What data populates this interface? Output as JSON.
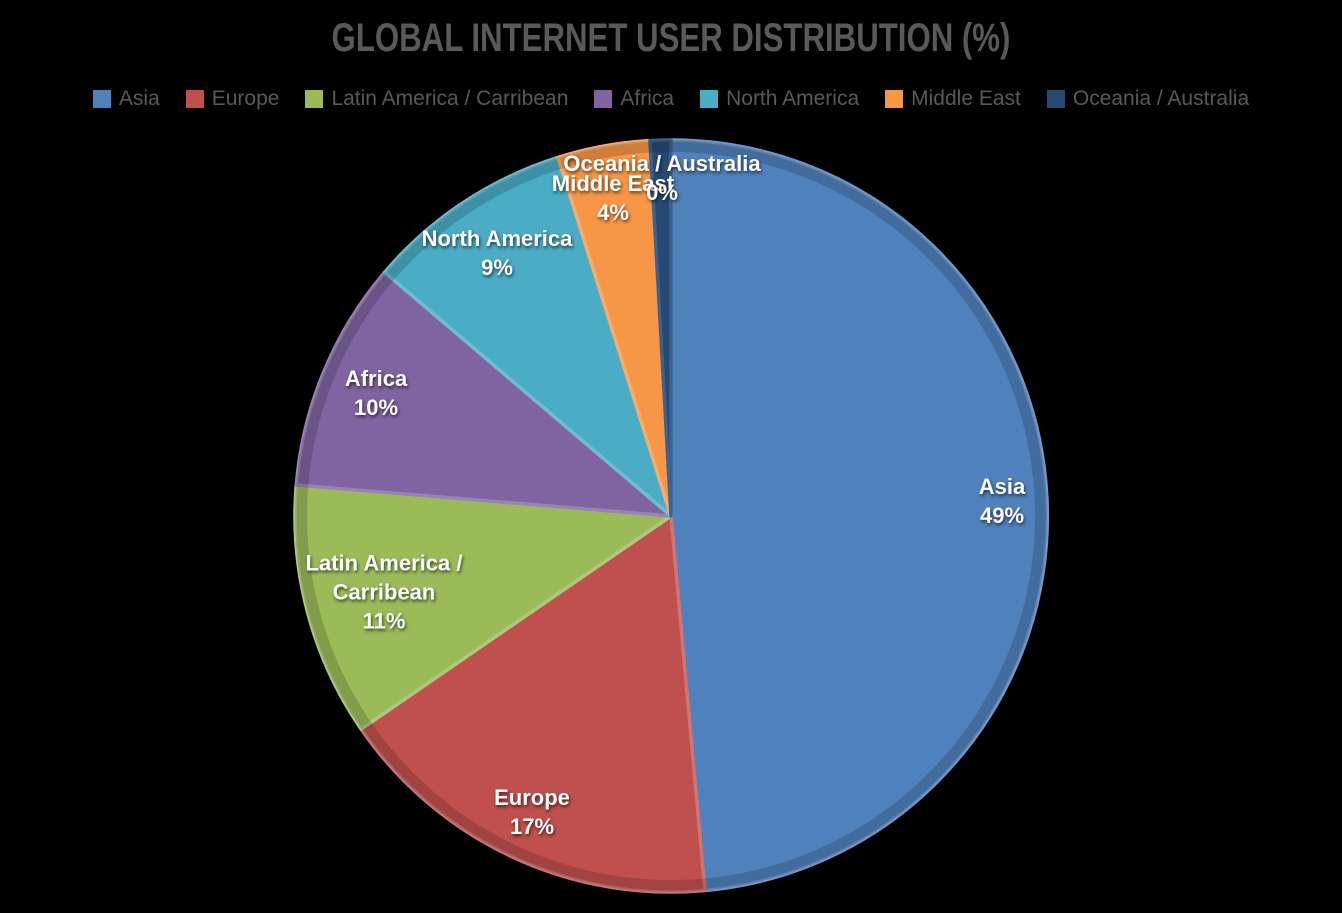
{
  "title": "GLOBAL INTERNET USER DISTRIBUTION (%)",
  "colors": {
    "background": "#000000",
    "title_text": "#595959",
    "legend_text": "#595959",
    "slice_label_text": "#FFFFFF"
  },
  "chart_data": {
    "type": "pie",
    "title": "GLOBAL INTERNET USER DISTRIBUTION (%)",
    "units": "%",
    "start_angle_deg": 0,
    "direction": "clockwise",
    "legend_position": "top",
    "min_render_pct": 0.9,
    "slices": [
      {
        "label": "Asia",
        "value": 49,
        "pct_label": "49%",
        "color": "#4F81BD",
        "border": "#7298C9",
        "label_lines": [
          "Asia"
        ],
        "label_r": 0.88
      },
      {
        "label": "Europe",
        "value": 17,
        "pct_label": "17%",
        "color": "#C0504D",
        "border": "#CD7573",
        "label_lines": [
          "Europe"
        ],
        "label_r": 0.87
      },
      {
        "label": "Latin America / Carribean",
        "value": 11,
        "pct_label": "11%",
        "color": "#9BBB59",
        "border": "#AFC97C",
        "label_lines": [
          "Latin America /",
          "Carribean"
        ],
        "label_r": 0.79
      },
      {
        "label": "Africa",
        "value": 10,
        "pct_label": "10%",
        "color": "#8064A2",
        "border": "#9983B5",
        "label_lines": [
          "Africa"
        ],
        "label_r": 0.85
      },
      {
        "label": "North America",
        "value": 9,
        "pct_label": "9%",
        "color": "#4BACC6",
        "border": "#6FBDD1",
        "label_lines": [
          "North America"
        ],
        "label_r": 0.84
      },
      {
        "label": "Middle East",
        "value": 4,
        "pct_label": "4%",
        "color": "#F79646",
        "border": "#F9AB6B",
        "label_lines": [
          "Middle East"
        ],
        "label_r": 0.86
      },
      {
        "label": "Oceania / Australia",
        "value": 0,
        "pct_label": "0%",
        "color": "#264A73",
        "border": "#3C6290",
        "label_lines": [
          "Oceania / Australia"
        ],
        "label_r": 0.9
      }
    ]
  }
}
